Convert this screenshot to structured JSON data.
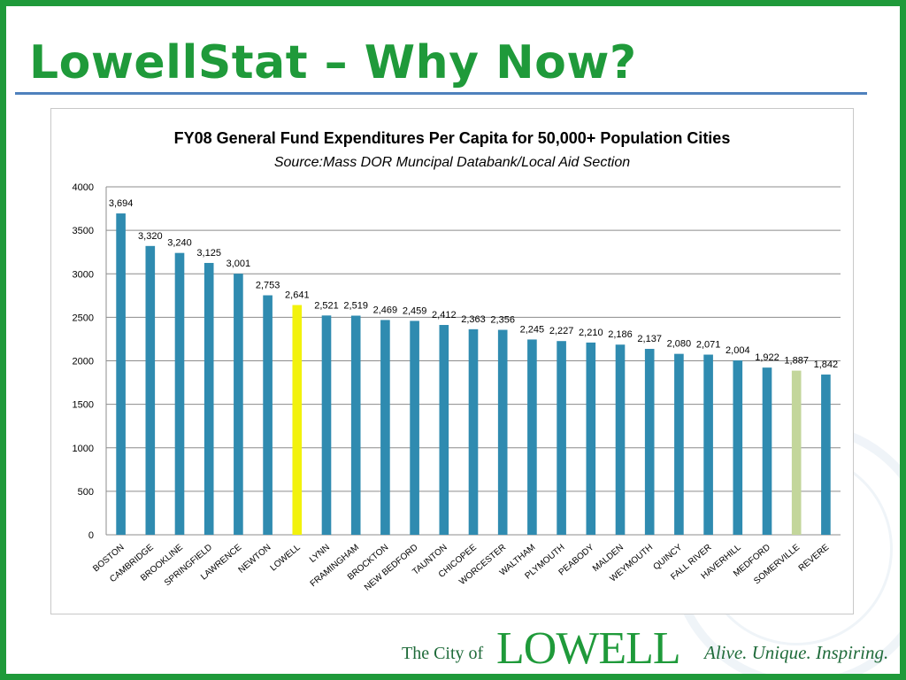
{
  "slide": {
    "title": "LowellStat – Why Now?"
  },
  "footer": {
    "prefix": "The City of",
    "name": "LOWELL",
    "tagline": "Alive. Unique. Inspiring."
  },
  "colors": {
    "brand_green": "#1f9a3a",
    "rule_blue": "#4f81bd",
    "bar_default": "#2f8bb0",
    "bar_highlight": "#f2f20c",
    "bar_secondary": "#c3d69b"
  },
  "chart_data": {
    "type": "bar",
    "title": "FY08 General Fund Expenditures Per Capita for 50,000+ Population Cities",
    "subtitle": "Source:Mass DOR Muncipal Databank/Local Aid Section",
    "xlabel": "",
    "ylabel": "",
    "ylim": [
      0,
      4000
    ],
    "yticks": [
      0,
      500,
      1000,
      1500,
      2000,
      2500,
      3000,
      3500,
      4000
    ],
    "grid": true,
    "categories": [
      "BOSTON",
      "CAMBRIDGE",
      "BROOKLINE",
      "SPRINGFIELD",
      "LAWRENCE",
      "NEWTON",
      "LOWELL",
      "LYNN",
      "FRAMINGHAM",
      "BROCKTON",
      "NEW BEDFORD",
      "TAUNTON",
      "CHICOPEE",
      "WORCESTER",
      "WALTHAM",
      "PLYMOUTH",
      "PEABODY",
      "MALDEN",
      "WEYMOUTH",
      "QUINCY",
      "FALL RIVER",
      "HAVERHILL",
      "MEDFORD",
      "SOMERVILLE",
      "REVERE"
    ],
    "values": [
      3694,
      3320,
      3240,
      3125,
      3001,
      2753,
      2641,
      2521,
      2519,
      2469,
      2459,
      2412,
      2363,
      2356,
      2245,
      2227,
      2210,
      2186,
      2137,
      2080,
      2071,
      2004,
      1922,
      1887,
      1842
    ],
    "value_labels": [
      "3,694",
      "3,320",
      "3,240",
      "3,125",
      "3,001",
      "2,753",
      "2,641",
      "2,521",
      "2,519",
      "2,469",
      "2,459",
      "2,412",
      "2,363",
      "2,356",
      "2,245",
      "2,227",
      "2,210",
      "2,186",
      "2,137",
      "2,080",
      "2,071",
      "2,004",
      "1,922",
      "1,887",
      "1,842"
    ],
    "highlights": {
      "LOWELL": "#f2f20c",
      "SOMERVILLE": "#c3d69b"
    }
  }
}
